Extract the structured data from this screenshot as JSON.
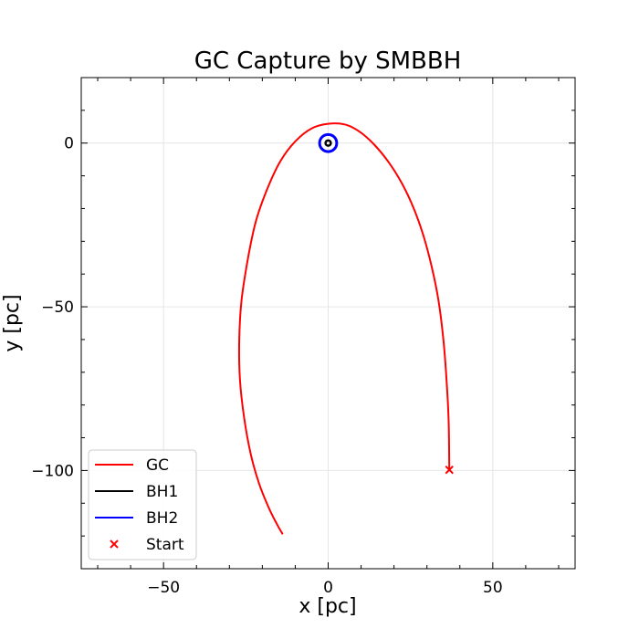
{
  "chart_data": {
    "type": "line",
    "title": "GC Capture by SMBBH",
    "xlabel": "x [pc]",
    "ylabel": "y [pc]",
    "xlim": [
      -75,
      75
    ],
    "ylim": [
      -130,
      20
    ],
    "xticks": [
      -50,
      0,
      50
    ],
    "yticks": [
      0,
      -50,
      -100
    ],
    "xtick_labels": [
      "−50",
      "0",
      "50"
    ],
    "ytick_labels": [
      "0",
      "−50",
      "−100"
    ],
    "grid": true,
    "legend_position": "lower-left",
    "series": [
      {
        "name": "GC",
        "color": "#ff0000",
        "style": "line",
        "x": [
          36.8,
          36.6,
          36.0,
          35.0,
          33.5,
          31.5,
          29.0,
          26.0,
          22.5,
          18.5,
          14.0,
          9.5,
          5.0,
          0.0,
          -5.0,
          -10.0,
          -14.5,
          -18.5,
          -22.0,
          -24.5,
          -26.3,
          -27.0,
          -26.8,
          -25.5,
          -23.5,
          -21.0,
          -18.0,
          -15.5,
          -13.8
        ],
        "y": [
          -99.8,
          -85.0,
          -73.0,
          -60.0,
          -48.0,
          -38.0,
          -28.5,
          -20.0,
          -12.5,
          -6.0,
          -0.5,
          3.5,
          5.7,
          5.9,
          4.5,
          0.5,
          -5.5,
          -14.0,
          -24.0,
          -36.0,
          -48.0,
          -60.0,
          -72.0,
          -84.0,
          -95.0,
          -104.0,
          -111.5,
          -116.5,
          -119.5
        ]
      },
      {
        "name": "BH1",
        "color": "#000000",
        "style": "orbit",
        "center": [
          0,
          0
        ],
        "radius": 0.8
      },
      {
        "name": "BH2",
        "color": "#0000ff",
        "style": "orbit",
        "center": [
          0,
          0
        ],
        "radius": 2.6
      },
      {
        "name": "Start",
        "color": "#ff0000",
        "style": "marker-x",
        "x": [
          36.8
        ],
        "y": [
          -99.8
        ]
      }
    ]
  }
}
